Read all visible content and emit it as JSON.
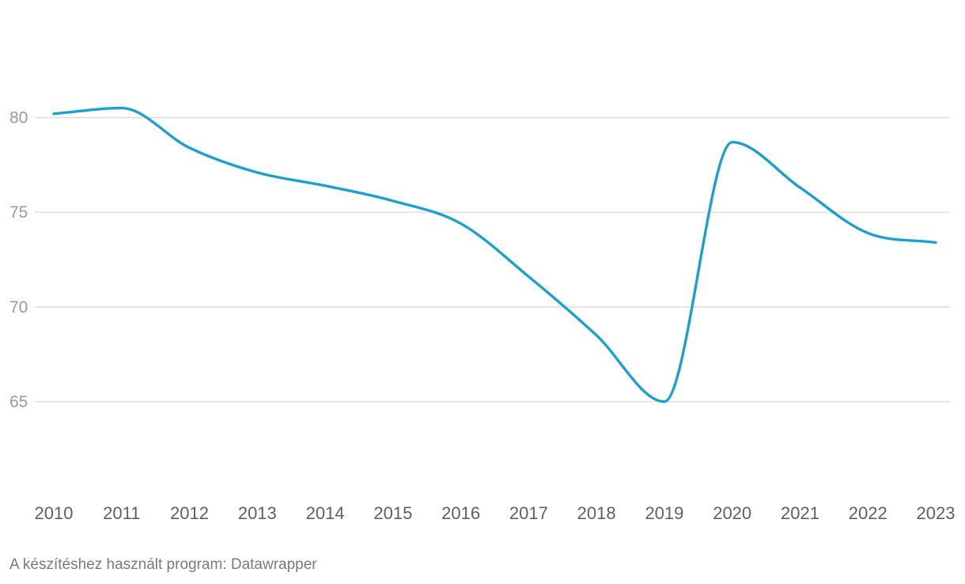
{
  "chart_data": {
    "type": "line",
    "title": "",
    "xlabel": "",
    "ylabel": "",
    "x": [
      "2010",
      "2011",
      "2012",
      "2013",
      "2014",
      "2015",
      "2016",
      "2017",
      "2018",
      "2019",
      "2020",
      "2021",
      "2022",
      "2023"
    ],
    "yticks": [
      65,
      70,
      75,
      80
    ],
    "ylim": [
      60.3,
      83.7
    ],
    "grid": true,
    "series": [
      {
        "values": [
          80.2,
          80.5,
          78.4,
          77.1,
          76.4,
          75.6,
          74.4,
          71.6,
          68.5,
          65.0,
          78.7,
          76.3,
          73.9,
          73.4
        ],
        "color": "#1f9fcb"
      }
    ]
  },
  "footer": {
    "credit": "A készítéshez használt program: Datawrapper"
  }
}
